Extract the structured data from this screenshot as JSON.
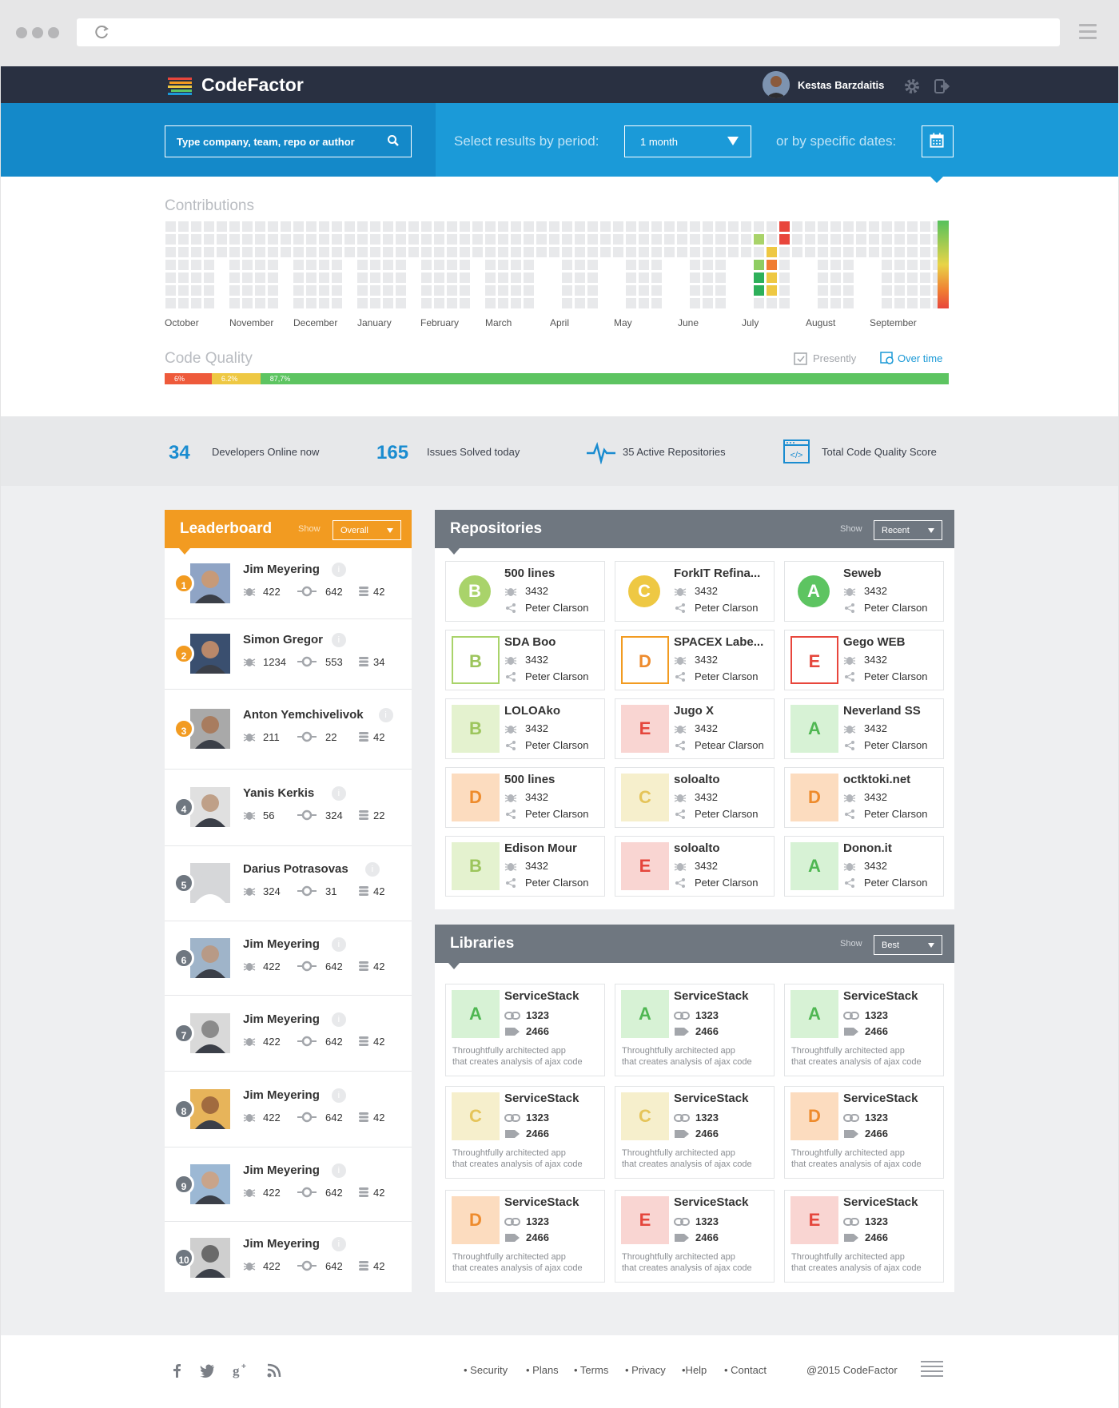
{
  "app": {
    "name": "CodeFactor"
  },
  "user": {
    "name": "Kestas Barzdaitis"
  },
  "search": {
    "placeholder": "Type company, team, repo or author"
  },
  "filter": {
    "period_label": "Select results by period:",
    "period_value": "1 month",
    "dates_label": "or by specific dates:"
  },
  "contributions": {
    "title": "Contributions",
    "months": [
      "October",
      "November",
      "December",
      "January",
      "February",
      "March",
      "April",
      "May",
      "June",
      "July",
      "August",
      "September"
    ]
  },
  "quality": {
    "title": "Code Quality",
    "presently": "Presently",
    "over_time": "Over time",
    "segments": [
      {
        "label": "6%",
        "percent": 6,
        "color": "#ee5a3b"
      },
      {
        "label": "6.2%",
        "percent": 6.2,
        "color": "#eec843"
      },
      {
        "label": "87,7%",
        "percent": 87.7,
        "color": "#5dc461"
      }
    ]
  },
  "stats": {
    "developers_num": "34",
    "developers_label": "Developers Online now",
    "issues_num": "165",
    "issues_label": "Issues Solved today",
    "repos_label": "35 Active Repositories",
    "score_label": "Total Code Quality Score"
  },
  "leaderboard": {
    "title": "Leaderboard",
    "show": "Show",
    "select": "Overall",
    "entries": [
      {
        "rank": "1",
        "name": "Jim Meyering",
        "bugs": "422",
        "commits": "642",
        "db": "42"
      },
      {
        "rank": "2",
        "name": "Simon Gregor",
        "bugs": "1234",
        "commits": "553",
        "db": "34"
      },
      {
        "rank": "3",
        "name": "Anton Yemchivelivok",
        "bugs": "211",
        "commits": "22",
        "db": "42"
      },
      {
        "rank": "4",
        "name": "Yanis Kerkis",
        "bugs": "56",
        "commits": "324",
        "db": "22"
      },
      {
        "rank": "5",
        "name": "Darius Potrasovas",
        "bugs": "324",
        "commits": "31",
        "db": "42"
      },
      {
        "rank": "6",
        "name": "Jim Meyering",
        "bugs": "422",
        "commits": "642",
        "db": "42"
      },
      {
        "rank": "7",
        "name": "Jim Meyering",
        "bugs": "422",
        "commits": "642",
        "db": "42"
      },
      {
        "rank": "8",
        "name": "Jim Meyering",
        "bugs": "422",
        "commits": "642",
        "db": "42"
      },
      {
        "rank": "9",
        "name": "Jim Meyering",
        "bugs": "422",
        "commits": "642",
        "db": "42"
      },
      {
        "rank": "10",
        "name": "Jim Meyering",
        "bugs": "422",
        "commits": "642",
        "db": "42"
      }
    ]
  },
  "repositories": {
    "title": "Repositories",
    "show": "Show",
    "select": "Recent",
    "items": [
      {
        "grade": "B",
        "name": "500 lines",
        "count": "3432",
        "author": "Peter Clarson"
      },
      {
        "grade": "C",
        "name": "ForkIT Refina...",
        "count": "3432",
        "author": "Peter Clarson"
      },
      {
        "grade": "A",
        "name": "Seweb",
        "count": "3432",
        "author": "Peter Clarson"
      },
      {
        "grade": "B",
        "name": "SDA Boo",
        "count": "3432",
        "author": "Peter Clarson"
      },
      {
        "grade": "D",
        "name": "SPACEX Labe...",
        "count": "3432",
        "author": "Peter Clarson"
      },
      {
        "grade": "E",
        "name": "Gego WEB",
        "count": "3432",
        "author": "Peter Clarson"
      },
      {
        "grade": "B",
        "name": "LOLOAko",
        "count": "3432",
        "author": "Peter Clarson"
      },
      {
        "grade": "E",
        "name": "Jugo X",
        "count": "3432",
        "author": "Petear Clarson"
      },
      {
        "grade": "A",
        "name": "Neverland SS",
        "count": "3432",
        "author": "Peter Clarson"
      },
      {
        "grade": "D",
        "name": "500 lines",
        "count": "3432",
        "author": "Peter Clarson"
      },
      {
        "grade": "C",
        "name": "soloalto",
        "count": "3432",
        "author": "Peter Clarson"
      },
      {
        "grade": "D",
        "name": "octktoki.net",
        "count": "3432",
        "author": "Peter Clarson"
      },
      {
        "grade": "B",
        "name": "Edison Mour",
        "count": "3432",
        "author": "Peter Clarson"
      },
      {
        "grade": "E",
        "name": "soloalto",
        "count": "3432",
        "author": "Peter Clarson"
      },
      {
        "grade": "A",
        "name": "Donon.it",
        "count": "3432",
        "author": "Peter Clarson"
      }
    ]
  },
  "libraries": {
    "title": "Libraries",
    "show": "Show",
    "select": "Best",
    "items": [
      {
        "grade": "A",
        "name": "ServiceStack",
        "links": "1323",
        "tags": "2466",
        "desc1": "Throughtfully architected app",
        "desc2": "that creates analysis of ajax code"
      },
      {
        "grade": "A",
        "name": "ServiceStack",
        "links": "1323",
        "tags": "2466",
        "desc1": "Throughtfully architected app",
        "desc2": "that creates analysis of ajax code"
      },
      {
        "grade": "A",
        "name": "ServiceStack",
        "links": "1323",
        "tags": "2466",
        "desc1": "Throughtfully architected app",
        "desc2": "that creates analysis of ajax code"
      },
      {
        "grade": "C",
        "name": "ServiceStack",
        "links": "1323",
        "tags": "2466",
        "desc1": "Throughtfully architected app",
        "desc2": "that creates analysis of ajax code"
      },
      {
        "grade": "C",
        "name": "ServiceStack",
        "links": "1323",
        "tags": "2466",
        "desc1": "Throughtfully architected app",
        "desc2": "that creates analysis of ajax code"
      },
      {
        "grade": "D",
        "name": "ServiceStack",
        "links": "1323",
        "tags": "2466",
        "desc1": "Throughtfully architected app",
        "desc2": "that creates analysis of ajax code"
      },
      {
        "grade": "D",
        "name": "ServiceStack",
        "links": "1323",
        "tags": "2466",
        "desc1": "Throughtfully architected app",
        "desc2": "that creates analysis of ajax code"
      },
      {
        "grade": "E",
        "name": "ServiceStack",
        "links": "1323",
        "tags": "2466",
        "desc1": "Throughtfully architected app",
        "desc2": "that creates analysis of ajax code"
      },
      {
        "grade": "E",
        "name": "ServiceStack",
        "links": "1323",
        "tags": "2466",
        "desc1": "Throughtfully architected app",
        "desc2": "that creates analysis of ajax code"
      }
    ]
  },
  "footer": {
    "links": [
      "• Security",
      "• Plans",
      "• Terms",
      "• Privacy",
      "•Help",
      "• Contact"
    ],
    "copyright": "@2015 CodeFactor"
  },
  "colors": {
    "accent": "#1b9ad8",
    "nav": "#293041",
    "leaderboard": "#f29b21",
    "panel": "#6f7780"
  }
}
